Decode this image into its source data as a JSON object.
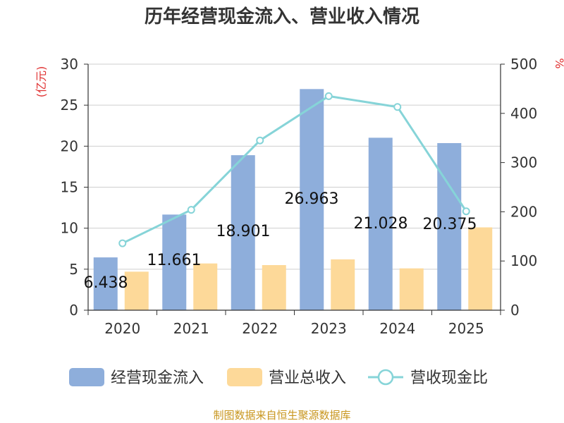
{
  "chart_data": {
    "type": "bar",
    "title": "历年经营现金流入、营业收入情况",
    "categories": [
      "2020",
      "2021",
      "2022",
      "2023",
      "2024",
      "2025"
    ],
    "series": [
      {
        "name": "经营现金流入",
        "axis": "left",
        "kind": "bar",
        "color": "#8eaedb",
        "values": [
          6.438,
          11.661,
          18.901,
          26.963,
          21.028,
          20.375
        ],
        "labels": [
          "6.438",
          "11.661",
          "18.901",
          "26.963",
          "21.028",
          "20.375"
        ]
      },
      {
        "name": "营业总收入",
        "axis": "left",
        "kind": "bar",
        "color": "#fdd999",
        "values": [
          4.7,
          5.7,
          5.5,
          6.2,
          5.1,
          10.1
        ]
      },
      {
        "name": "营收现金比",
        "axis": "right",
        "kind": "line",
        "color": "#86d4d8",
        "values": [
          136,
          204,
          345,
          435,
          413,
          201
        ]
      }
    ],
    "y_left": {
      "label": "(亿元)",
      "ylim": [
        0,
        30
      ],
      "ticks": [
        "0",
        "5",
        "10",
        "15",
        "20",
        "25",
        "30"
      ]
    },
    "y_right": {
      "label": "%",
      "ylim": [
        0,
        500
      ],
      "ticks": [
        "0",
        "100",
        "200",
        "300",
        "400",
        "500"
      ]
    },
    "legend": "bottom",
    "grid": true
  },
  "source": "制图数据来自恒生聚源数据库"
}
